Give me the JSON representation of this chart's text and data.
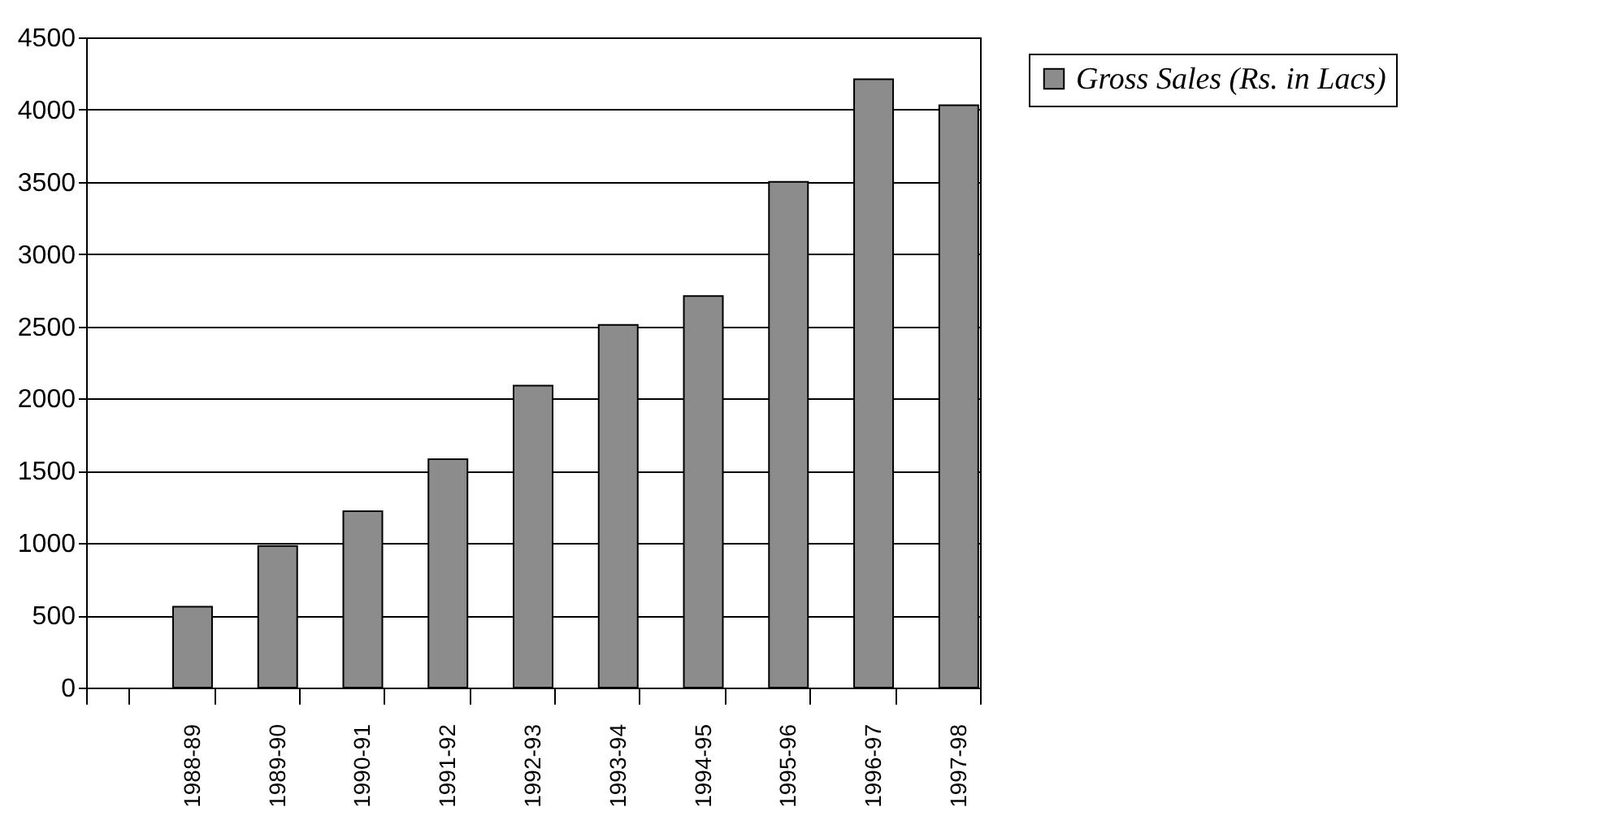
{
  "chart_data": {
    "type": "bar",
    "categories": [
      null,
      "1988-89",
      "1989-90",
      "1990-91",
      "1991-92",
      "1992-93",
      "1993-94",
      "1994-95",
      "1995-96",
      "1996-97",
      "1997-98"
    ],
    "series": [
      {
        "name": "Gross Sales (Rs. in Lacs)",
        "color": "#8c8c8c",
        "values": [
          null,
          560,
          980,
          1220,
          1580,
          2090,
          2510,
          2710,
          3500,
          4210,
          4030
        ]
      }
    ],
    "ylim": [
      0,
      4500
    ],
    "yticks": [
      0,
      500,
      1000,
      1500,
      2000,
      2500,
      3000,
      3500,
      4000,
      4500
    ],
    "grid": "y",
    "legend": "top right"
  }
}
